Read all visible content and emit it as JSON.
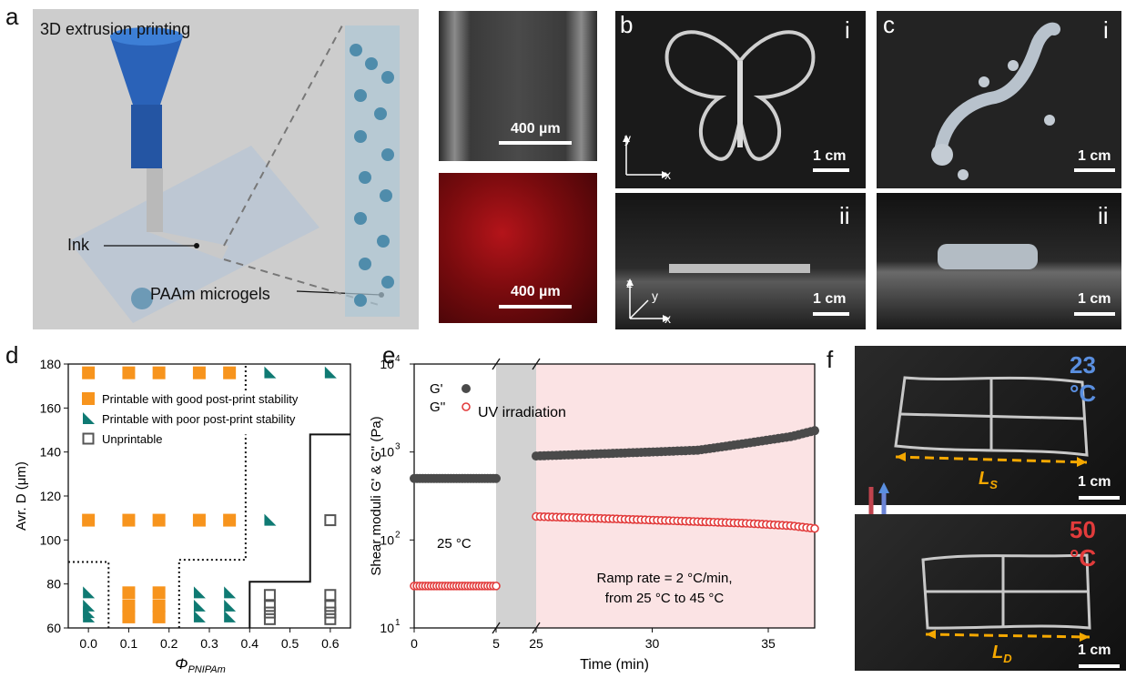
{
  "panel_a": {
    "letter": "a",
    "title": "3D extrusion printing",
    "ink_label": "Ink",
    "microgel_label": "PAAm microgels",
    "scale_top": "400 µm",
    "scale_bottom": "400 µm"
  },
  "panel_b": {
    "letter": "b",
    "top_roman": "i",
    "bottom_roman": "ii",
    "scale_top": "1 cm",
    "scale_bottom": "1 cm",
    "axis_y": "y",
    "axis_x": "x",
    "axis_z": "z",
    "axis_y2": "y",
    "axis_x2": "x"
  },
  "panel_c": {
    "letter": "c",
    "top_roman": "i",
    "bottom_roman": "ii",
    "scale_top": "1 cm",
    "scale_bottom": "1 cm"
  },
  "panel_f": {
    "letter": "f",
    "temp_top": "23 °C",
    "temp_bottom": "50 °C",
    "ls_label": "L",
    "ls_sub": "S",
    "ld_label": "L",
    "ld_sub": "D",
    "scale_top": "1 cm",
    "scale_bottom": "1 cm",
    "accent_blue": "#5a8fe0",
    "accent_red": "#e23b3b",
    "accent_orange": "#f5a800"
  },
  "chart_data": [
    {
      "panel": "d",
      "type": "scatter",
      "xlabel": "Φ",
      "xlabel_sub": "PNIPAm",
      "ylabel": "Avr. D (μm)",
      "xlim": [
        -0.05,
        0.65
      ],
      "ylim": [
        60,
        180
      ],
      "xticks": [
        "0.0",
        "0.1",
        "0.2",
        "0.3",
        "0.4",
        "0.5",
        "0.6"
      ],
      "yticks": [
        "60",
        "80",
        "100",
        "120",
        "140",
        "160",
        "180"
      ],
      "legend": [
        {
          "name": "Printable with good post-print stability",
          "marker": "square-filled",
          "color": "#f7941d"
        },
        {
          "name": "Printable with poor post-print stability",
          "marker": "triangle",
          "color": "#0f7a73"
        },
        {
          "name": "Unprintable",
          "marker": "square-open",
          "color": "#555555"
        }
      ],
      "series": [
        {
          "name": "Printable with good post-print stability",
          "points": [
            [
              0.0,
              176
            ],
            [
              0.1,
              176
            ],
            [
              0.175,
              176
            ],
            [
              0.275,
              176
            ],
            [
              0.35,
              176
            ],
            [
              0.0,
              109
            ],
            [
              0.1,
              109
            ],
            [
              0.175,
              109
            ],
            [
              0.275,
              109
            ],
            [
              0.35,
              109
            ],
            [
              0.1,
              76
            ],
            [
              0.175,
              76
            ],
            [
              0.1,
              70
            ],
            [
              0.175,
              70
            ],
            [
              0.1,
              65
            ],
            [
              0.175,
              65
            ]
          ]
        },
        {
          "name": "Printable with poor post-print stability",
          "points": [
            [
              0.45,
              176
            ],
            [
              0.6,
              176
            ],
            [
              0.45,
              109
            ],
            [
              0.0,
              76
            ],
            [
              0.0,
              70
            ],
            [
              0.0,
              67
            ],
            [
              0.0,
              65
            ],
            [
              0.275,
              76
            ],
            [
              0.35,
              76
            ],
            [
              0.275,
              70
            ],
            [
              0.35,
              70
            ],
            [
              0.275,
              65
            ],
            [
              0.35,
              65
            ]
          ]
        },
        {
          "name": "Unprintable",
          "points": [
            [
              0.6,
              109
            ],
            [
              0.45,
              75
            ],
            [
              0.45,
              70
            ],
            [
              0.45,
              67
            ],
            [
              0.45,
              64
            ],
            [
              0.6,
              75
            ],
            [
              0.6,
              70
            ],
            [
              0.6,
              67
            ],
            [
              0.6,
              64
            ]
          ]
        }
      ]
    },
    {
      "panel": "e",
      "type": "scatter",
      "xlabel": "Time (min)",
      "ylabel": "Shear moduli G' & G'' (Pa)",
      "xticks_left": [
        "0",
        "5"
      ],
      "xticks_right": [
        "25",
        "30",
        "35"
      ],
      "yscale": "log",
      "ylim": [
        10,
        10000
      ],
      "yticks": [
        "10^1",
        "10^2",
        "10^3",
        "10^4"
      ],
      "legend": [
        {
          "name": "G'",
          "marker": "circle-filled",
          "color": "#4a4a4a"
        },
        {
          "name": "G''",
          "marker": "circle-open",
          "color": "#e23b3b"
        }
      ],
      "annotation_uv": "UV irradiation",
      "annotation_temp": "25 °C",
      "annotation_ramp_1": "Ramp rate = 2 °C/min,",
      "annotation_ramp_2": "from 25 °C to 45 °C",
      "series": [
        {
          "name": "G'",
          "segments": [
            {
              "x": [
                0,
                5
              ],
              "y": [
                500,
                500
              ]
            },
            {
              "x": [
                25,
                30,
                32,
                34,
                36,
                37
              ],
              "y": [
                900,
                1000,
                1050,
                1250,
                1500,
                1750
              ]
            }
          ]
        },
        {
          "name": "G''",
          "segments": [
            {
              "x": [
                0,
                5
              ],
              "y": [
                30,
                30
              ]
            },
            {
              "x": [
                25,
                28,
                31,
                34,
                36,
                37
              ],
              "y": [
                185,
                175,
                165,
                155,
                145,
                135
              ]
            }
          ]
        }
      ],
      "colors": {
        "gray_band": "#d2d2d2",
        "pink_band": "#fbe3e4"
      }
    }
  ]
}
